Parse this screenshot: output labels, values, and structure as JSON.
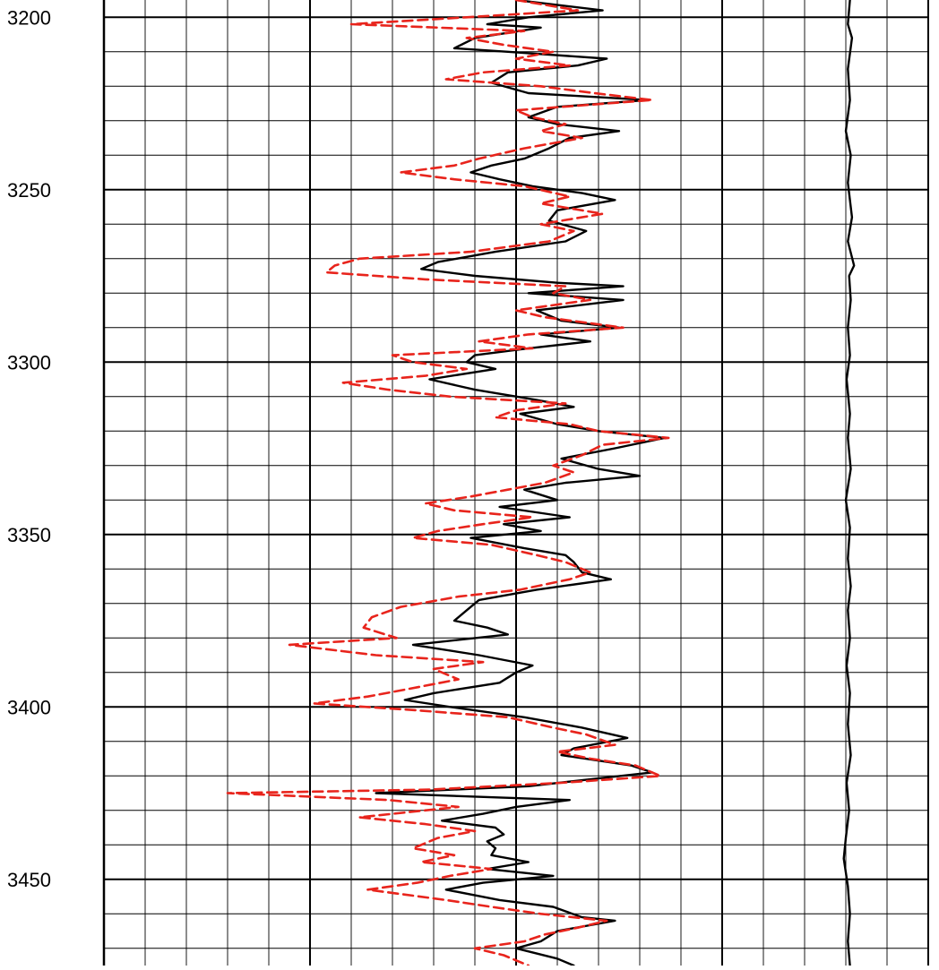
{
  "chart_data": {
    "type": "line",
    "title": "",
    "xlabel": "",
    "ylabel": "",
    "orientation": "vertical-depth",
    "y_axis": {
      "ticks": [
        "3200",
        "3250",
        "3300",
        "3350",
        "3400",
        "3450"
      ],
      "ylim": [
        3195,
        3475
      ],
      "inverted": true
    },
    "x_axis": {
      "xlim": [
        0,
        20
      ]
    },
    "grid": true,
    "colors": {
      "solid_series": "#000000",
      "dashed_series": "#e8241c",
      "grid": "#000000",
      "background": "#ffffff"
    },
    "series": [
      {
        "style": "solid",
        "color": "#000000",
        "points": [
          [
            3195,
            10.0
          ],
          [
            3198,
            12.1
          ],
          [
            3200,
            10.3
          ],
          [
            3202,
            9.3
          ],
          [
            3203,
            10.6
          ],
          [
            3206,
            9.0
          ],
          [
            3209,
            8.5
          ],
          [
            3210,
            9.8
          ],
          [
            3212,
            12.2
          ],
          [
            3214,
            11.5
          ],
          [
            3216,
            9.8
          ],
          [
            3219,
            9.4
          ],
          [
            3222,
            10.3
          ],
          [
            3224,
            13.2
          ],
          [
            3226,
            11.0
          ],
          [
            3229,
            10.3
          ],
          [
            3231,
            11.0
          ],
          [
            3233,
            12.5
          ],
          [
            3235,
            11.3
          ],
          [
            3238,
            10.8
          ],
          [
            3241,
            10.2
          ],
          [
            3243,
            9.4
          ],
          [
            3245,
            8.9
          ],
          [
            3247,
            9.6
          ],
          [
            3249,
            10.4
          ],
          [
            3251,
            11.6
          ],
          [
            3253,
            12.4
          ],
          [
            3256,
            11.0
          ],
          [
            3259,
            10.8
          ],
          [
            3262,
            11.7
          ],
          [
            3265,
            11.2
          ],
          [
            3268,
            9.5
          ],
          [
            3271,
            8.1
          ],
          [
            3273,
            7.7
          ],
          [
            3275,
            9.0
          ],
          [
            3277,
            11.0
          ],
          [
            3278,
            12.6
          ],
          [
            3280,
            10.3
          ],
          [
            3282,
            12.6
          ],
          [
            3285,
            10.5
          ],
          [
            3288,
            11.1
          ],
          [
            3290,
            12.5
          ],
          [
            3292,
            10.6
          ],
          [
            3294,
            11.8
          ],
          [
            3296,
            10.3
          ],
          [
            3298,
            9.0
          ],
          [
            3300,
            8.8
          ],
          [
            3302,
            9.5
          ],
          [
            3305,
            7.9
          ],
          [
            3308,
            9.0
          ],
          [
            3311,
            10.5
          ],
          [
            3313,
            11.4
          ],
          [
            3315,
            10.1
          ],
          [
            3318,
            11.0
          ],
          [
            3320,
            12.0
          ],
          [
            3322,
            13.6
          ],
          [
            3325,
            12.4
          ],
          [
            3328,
            11.1
          ],
          [
            3331,
            12.0
          ],
          [
            3333,
            13.0
          ],
          [
            3335,
            11.2
          ],
          [
            3337,
            10.2
          ],
          [
            3340,
            11.0
          ],
          [
            3342,
            9.6
          ],
          [
            3345,
            11.3
          ],
          [
            3347,
            9.7
          ],
          [
            3349,
            10.6
          ],
          [
            3351,
            8.9
          ],
          [
            3354,
            10.2
          ],
          [
            3356,
            11.2
          ],
          [
            3358,
            11.4
          ],
          [
            3361,
            11.6
          ],
          [
            3363,
            12.3
          ],
          [
            3366,
            10.5
          ],
          [
            3369,
            9.1
          ],
          [
            3372,
            8.8
          ],
          [
            3375,
            8.5
          ],
          [
            3377,
            9.3
          ],
          [
            3379,
            9.8
          ],
          [
            3382,
            7.5
          ],
          [
            3385,
            9.1
          ],
          [
            3388,
            10.4
          ],
          [
            3390,
            10.0
          ],
          [
            3393,
            9.6
          ],
          [
            3396,
            8.0
          ],
          [
            3398,
            7.3
          ],
          [
            3400,
            8.4
          ],
          [
            3403,
            10.2
          ],
          [
            3406,
            11.6
          ],
          [
            3409,
            12.7
          ],
          [
            3412,
            11.4
          ],
          [
            3414,
            11.1
          ],
          [
            3417,
            12.8
          ],
          [
            3419,
            13.3
          ],
          [
            3421,
            11.8
          ],
          [
            3423,
            10.3
          ],
          [
            3425,
            6.6
          ],
          [
            3427,
            11.3
          ],
          [
            3429,
            10.0
          ],
          [
            3431,
            9.2
          ],
          [
            3433,
            8.2
          ],
          [
            3435,
            9.5
          ],
          [
            3437,
            9.7
          ],
          [
            3439,
            9.3
          ],
          [
            3441,
            9.5
          ],
          [
            3443,
            9.4
          ],
          [
            3445,
            10.3
          ],
          [
            3447,
            9.3
          ],
          [
            3449,
            10.9
          ],
          [
            3451,
            9.2
          ],
          [
            3453,
            8.3
          ],
          [
            3456,
            9.6
          ],
          [
            3458,
            10.9
          ],
          [
            3461,
            11.6
          ],
          [
            3462,
            12.4
          ],
          [
            3465,
            11.0
          ],
          [
            3468,
            10.6
          ],
          [
            3470,
            10.0
          ],
          [
            3473,
            11.0
          ],
          [
            3475,
            11.4
          ]
        ]
      },
      {
        "style": "dashed",
        "color": "#e8241c",
        "points": [
          [
            3195,
            10.0
          ],
          [
            3198,
            11.5
          ],
          [
            3200,
            8.8
          ],
          [
            3202,
            6.0
          ],
          [
            3204,
            10.2
          ],
          [
            3206,
            8.8
          ],
          [
            3208,
            9.7
          ],
          [
            3210,
            10.9
          ],
          [
            3212,
            10.0
          ],
          [
            3214,
            11.3
          ],
          [
            3216,
            9.2
          ],
          [
            3218,
            8.3
          ],
          [
            3220,
            10.6
          ],
          [
            3222,
            11.9
          ],
          [
            3224,
            13.3
          ],
          [
            3227,
            10.0
          ],
          [
            3229,
            10.4
          ],
          [
            3231,
            11.2
          ],
          [
            3233,
            10.6
          ],
          [
            3235,
            11.6
          ],
          [
            3238,
            10.2
          ],
          [
            3241,
            9.1
          ],
          [
            3243,
            8.5
          ],
          [
            3245,
            7.2
          ],
          [
            3247,
            8.5
          ],
          [
            3249,
            10.2
          ],
          [
            3252,
            11.3
          ],
          [
            3254,
            10.6
          ],
          [
            3257,
            12.1
          ],
          [
            3260,
            10.6
          ],
          [
            3262,
            11.4
          ],
          [
            3265,
            10.8
          ],
          [
            3268,
            8.9
          ],
          [
            3270,
            6.2
          ],
          [
            3272,
            5.6
          ],
          [
            3274,
            5.4
          ],
          [
            3276,
            7.8
          ],
          [
            3278,
            11.2
          ],
          [
            3280,
            10.9
          ],
          [
            3282,
            11.8
          ],
          [
            3285,
            10.0
          ],
          [
            3287,
            10.7
          ],
          [
            3290,
            12.6
          ],
          [
            3292,
            10.3
          ],
          [
            3294,
            9.1
          ],
          [
            3296,
            10.4
          ],
          [
            3298,
            7.0
          ],
          [
            3300,
            7.5
          ],
          [
            3302,
            8.8
          ],
          [
            3304,
            7.8
          ],
          [
            3306,
            5.8
          ],
          [
            3308,
            6.9
          ],
          [
            3310,
            8.4
          ],
          [
            3312,
            11.2
          ],
          [
            3314,
            10.0
          ],
          [
            3316,
            9.5
          ],
          [
            3318,
            11.3
          ],
          [
            3320,
            12.0
          ],
          [
            3322,
            13.7
          ],
          [
            3324,
            12.1
          ],
          [
            3327,
            11.6
          ],
          [
            3330,
            10.9
          ],
          [
            3332,
            11.4
          ],
          [
            3335,
            10.7
          ],
          [
            3337,
            9.8
          ],
          [
            3339,
            8.9
          ],
          [
            3341,
            7.8
          ],
          [
            3343,
            8.5
          ],
          [
            3345,
            10.4
          ],
          [
            3347,
            9.2
          ],
          [
            3349,
            8.1
          ],
          [
            3351,
            7.5
          ],
          [
            3353,
            9.4
          ],
          [
            3356,
            10.5
          ],
          [
            3358,
            11.2
          ],
          [
            3361,
            11.8
          ],
          [
            3363,
            11.3
          ],
          [
            3366,
            10.1
          ],
          [
            3368,
            8.6
          ],
          [
            3371,
            7.2
          ],
          [
            3374,
            6.5
          ],
          [
            3377,
            6.3
          ],
          [
            3380,
            7.1
          ],
          [
            3382,
            4.5
          ],
          [
            3385,
            6.6
          ],
          [
            3387,
            9.2
          ],
          [
            3389,
            8.0
          ],
          [
            3392,
            8.6
          ],
          [
            3395,
            7.3
          ],
          [
            3397,
            6.4
          ],
          [
            3399,
            5.1
          ],
          [
            3401,
            7.6
          ],
          [
            3403,
            9.8
          ],
          [
            3406,
            10.9
          ],
          [
            3408,
            11.7
          ],
          [
            3411,
            12.4
          ],
          [
            3413,
            11.0
          ],
          [
            3415,
            11.8
          ],
          [
            3417,
            12.9
          ],
          [
            3420,
            13.5
          ],
          [
            3422,
            11.1
          ],
          [
            3424,
            7.9
          ],
          [
            3425,
            3.0
          ],
          [
            3427,
            6.9
          ],
          [
            3429,
            8.6
          ],
          [
            3432,
            6.2
          ],
          [
            3434,
            7.8
          ],
          [
            3436,
            9.0
          ],
          [
            3438,
            8.1
          ],
          [
            3441,
            7.5
          ],
          [
            3443,
            8.5
          ],
          [
            3445,
            7.7
          ],
          [
            3447,
            9.4
          ],
          [
            3449,
            8.4
          ],
          [
            3451,
            7.6
          ],
          [
            3453,
            6.4
          ],
          [
            3456,
            8.3
          ],
          [
            3458,
            9.4
          ],
          [
            3460,
            10.6
          ],
          [
            3462,
            12.2
          ],
          [
            3464,
            11.5
          ],
          [
            3466,
            10.7
          ],
          [
            3468,
            10.2
          ],
          [
            3470,
            9.0
          ],
          [
            3472,
            9.7
          ],
          [
            3475,
            10.3
          ]
        ]
      },
      {
        "style": "solid",
        "color": "#000000",
        "points": [
          [
            3195,
            18.1
          ],
          [
            3202,
            18.05
          ],
          [
            3206,
            18.15
          ],
          [
            3215,
            18.05
          ],
          [
            3224,
            18.1
          ],
          [
            3233,
            18.0
          ],
          [
            3240,
            18.12
          ],
          [
            3248,
            18.05
          ],
          [
            3258,
            18.15
          ],
          [
            3265,
            18.05
          ],
          [
            3272,
            18.2
          ],
          [
            3275,
            18.08
          ],
          [
            3282,
            18.12
          ],
          [
            3290,
            18.05
          ],
          [
            3298,
            18.1
          ],
          [
            3305,
            18.02
          ],
          [
            3315,
            18.1
          ],
          [
            3322,
            18.05
          ],
          [
            3331,
            18.12
          ],
          [
            3340,
            18.0
          ],
          [
            3348,
            18.1
          ],
          [
            3357,
            18.05
          ],
          [
            3365,
            18.12
          ],
          [
            3372,
            18.05
          ],
          [
            3380,
            18.1
          ],
          [
            3388,
            18.02
          ],
          [
            3396,
            18.1
          ],
          [
            3405,
            18.05
          ],
          [
            3414,
            18.12
          ],
          [
            3422,
            18.02
          ],
          [
            3430,
            18.08
          ],
          [
            3438,
            18.0
          ],
          [
            3444,
            17.95
          ],
          [
            3452,
            18.05
          ],
          [
            3460,
            18.1
          ],
          [
            3468,
            18.05
          ],
          [
            3475,
            18.1
          ]
        ]
      }
    ]
  }
}
